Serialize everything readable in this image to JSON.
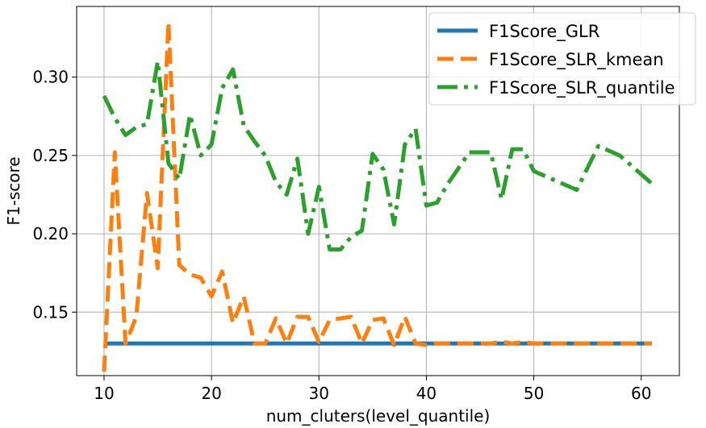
{
  "chart_data": {
    "type": "line",
    "xlabel": "num_cluters(level_quantile)",
    "ylabel": "F1-score",
    "xlim": [
      7.45,
      63.55
    ],
    "ylim": [
      0.1095,
      0.3451
    ],
    "xticks": [
      10,
      20,
      30,
      40,
      50,
      60
    ],
    "yticks": [
      0.15,
      0.2,
      0.25,
      0.3
    ],
    "ytick_labels": [
      "0.15",
      "0.20",
      "0.25",
      "0.30"
    ],
    "grid": true,
    "legend_position": "top-right",
    "series": [
      {
        "name": "F1Score_GLR",
        "color": "#1f77b4",
        "dash": "solid",
        "x": [
          10,
          61
        ],
        "y": [
          0.13,
          0.13
        ]
      },
      {
        "name": "F1Score_SLR_kmean",
        "color": "#ff7f0e",
        "dash": "dashed",
        "x": [
          10,
          11,
          12,
          13,
          14,
          15,
          16,
          17,
          18,
          19,
          20,
          21,
          22,
          23,
          24,
          25,
          26,
          27,
          28,
          29,
          30,
          31,
          32,
          33,
          34,
          35,
          36,
          37,
          38,
          39,
          40,
          41,
          42,
          44,
          46,
          47,
          48,
          49,
          50,
          52,
          55,
          58,
          61
        ],
        "y": [
          0.112,
          0.252,
          0.13,
          0.147,
          0.226,
          0.178,
          0.335,
          0.18,
          0.174,
          0.172,
          0.16,
          0.176,
          0.143,
          0.16,
          0.13,
          0.13,
          0.146,
          0.13,
          0.147,
          0.147,
          0.131,
          0.145,
          0.146,
          0.147,
          0.13,
          0.145,
          0.146,
          0.129,
          0.147,
          0.13,
          0.129,
          0.13,
          0.13,
          0.13,
          0.13,
          0.131,
          0.13,
          0.131,
          0.13,
          0.13,
          0.13,
          0.13,
          0.13
        ]
      },
      {
        "name": "F1Score_SLR_quantile",
        "color": "#2ca02c",
        "dash": "dashdot",
        "x": [
          10,
          11,
          12,
          13,
          14,
          15,
          16,
          17,
          18,
          19,
          20,
          21,
          22,
          23,
          24,
          25,
          26,
          27,
          28,
          29,
          30,
          31,
          32,
          33,
          34,
          35,
          36,
          37,
          38,
          39,
          40,
          41,
          42,
          44,
          46,
          47,
          48,
          49,
          50,
          54,
          56,
          58,
          61
        ],
        "y": [
          0.288,
          0.274,
          0.263,
          0.268,
          0.27,
          0.31,
          0.245,
          0.235,
          0.276,
          0.25,
          0.257,
          0.293,
          0.305,
          0.269,
          0.259,
          0.25,
          0.233,
          0.225,
          0.248,
          0.2,
          0.23,
          0.19,
          0.19,
          0.198,
          0.202,
          0.251,
          0.241,
          0.206,
          0.257,
          0.267,
          0.218,
          0.22,
          0.232,
          0.252,
          0.252,
          0.222,
          0.254,
          0.254,
          0.24,
          0.228,
          0.256,
          0.25,
          0.232
        ]
      }
    ]
  }
}
